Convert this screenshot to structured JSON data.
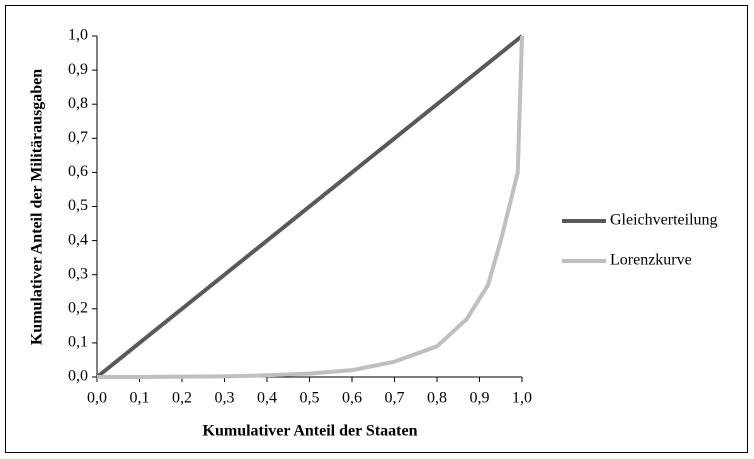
{
  "chart_data": {
    "type": "line",
    "x_label": "Kumulativer Anteil der Staaten",
    "y_label": "Kumulativer Anteil der Militärausgaben",
    "xlim": [
      0,
      1
    ],
    "ylim": [
      0,
      1
    ],
    "xticks": [
      {
        "value": 0,
        "label": "0,0"
      },
      {
        "value": 0.1,
        "label": "0,1"
      },
      {
        "value": 0.2,
        "label": "0,2"
      },
      {
        "value": 0.3,
        "label": "0,3"
      },
      {
        "value": 0.4,
        "label": "0,4"
      },
      {
        "value": 0.5,
        "label": "0,5"
      },
      {
        "value": 0.6,
        "label": "0,6"
      },
      {
        "value": 0.7,
        "label": "0,7"
      },
      {
        "value": 0.8,
        "label": "0,8"
      },
      {
        "value": 0.9,
        "label": "0,9"
      },
      {
        "value": 1,
        "label": "1,0"
      }
    ],
    "yticks": [
      {
        "value": 0,
        "label": "0,0"
      },
      {
        "value": 0.1,
        "label": "0,1"
      },
      {
        "value": 0.2,
        "label": "0,2"
      },
      {
        "value": 0.3,
        "label": "0,3"
      },
      {
        "value": 0.4,
        "label": "0,4"
      },
      {
        "value": 0.5,
        "label": "0,5"
      },
      {
        "value": 0.6,
        "label": "0,6"
      },
      {
        "value": 0.7,
        "label": "0,7"
      },
      {
        "value": 0.8,
        "label": "0,8"
      },
      {
        "value": 0.9,
        "label": "0,9"
      },
      {
        "value": 1,
        "label": "1,0"
      }
    ],
    "legend": "right",
    "series": [
      {
        "name": "Gleichverteilung",
        "color": "#595959",
        "x": [
          0,
          1
        ],
        "values": [
          0,
          1
        ]
      },
      {
        "name": "Lorenzkurve",
        "color": "#bfbfbf",
        "x": [
          0,
          0.1,
          0.2,
          0.3,
          0.4,
          0.5,
          0.6,
          0.7,
          0.8,
          0.87,
          0.92,
          0.95,
          0.97,
          0.99,
          1.0
        ],
        "values": [
          0,
          0,
          0.001,
          0.002,
          0.005,
          0.01,
          0.02,
          0.045,
          0.09,
          0.17,
          0.27,
          0.4,
          0.5,
          0.6,
          1.0
        ]
      }
    ]
  }
}
